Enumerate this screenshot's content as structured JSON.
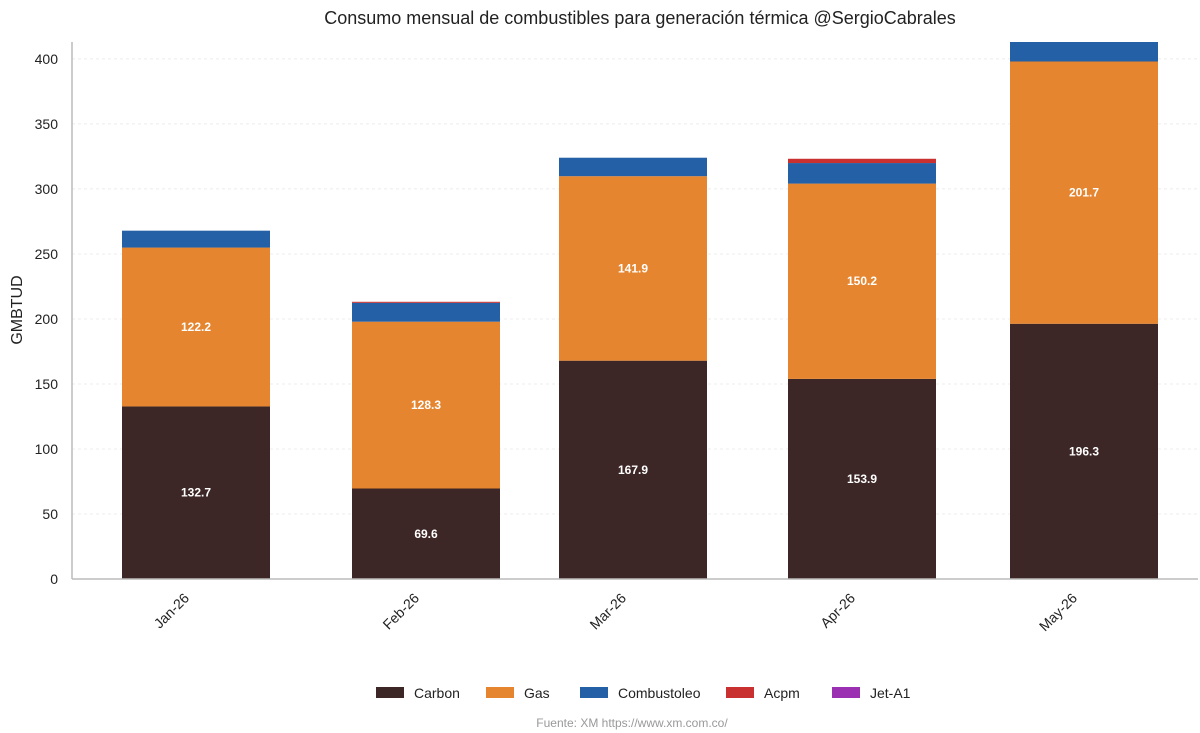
{
  "chart_data": {
    "type": "bar",
    "stacked": true,
    "title": "Consumo mensual de combustibles para generación térmica @SergioCabrales",
    "xlabel": "",
    "ylabel": "GMBTUD",
    "categories": [
      "Jan-26",
      "Feb-26",
      "Mar-26",
      "Apr-26",
      "May-26"
    ],
    "ylim": [
      0,
      413
    ],
    "yticks": [
      0,
      50,
      100,
      150,
      200,
      250,
      300,
      350,
      400
    ],
    "grid": true,
    "legend_position": "bottom",
    "series": [
      {
        "name": "Carbon",
        "color": "#3d2726",
        "values": [
          132.7,
          69.6,
          167.9,
          153.9,
          196.3
        ],
        "labels": [
          "132.7",
          "69.6",
          "167.9",
          "153.9",
          "196.3"
        ]
      },
      {
        "name": "Gas",
        "color": "#e6852f",
        "values": [
          122.2,
          128.3,
          141.9,
          150.2,
          201.7
        ],
        "labels": [
          "122.2",
          "128.3",
          "141.9",
          "150.2",
          "201.7"
        ]
      },
      {
        "name": "Combustoleo",
        "color": "#2460a6",
        "values": [
          13.0,
          14.5,
          14.2,
          15.8,
          15.0
        ],
        "labels": []
      },
      {
        "name": "Acpm",
        "color": "#c93030",
        "values": [
          0.0,
          0.8,
          0.0,
          3.3,
          0.0
        ],
        "labels": []
      },
      {
        "name": "Jet-A1",
        "color": "#9b30b3",
        "values": [
          0,
          0,
          0,
          0,
          0
        ],
        "labels": []
      }
    ],
    "source": "Fuente: XM https://www.xm.com.co/"
  }
}
